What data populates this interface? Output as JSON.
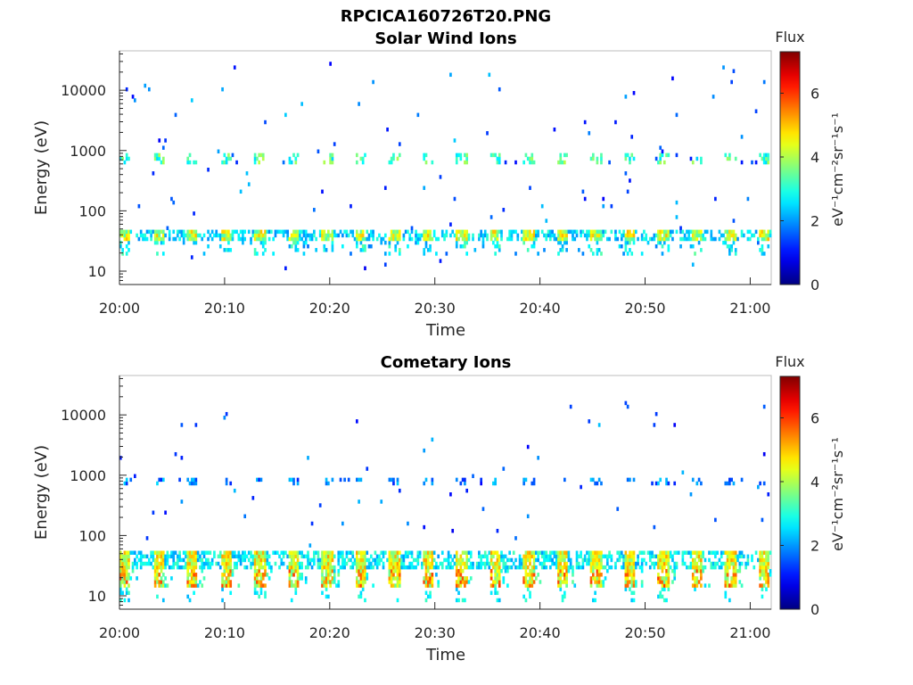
{
  "figure_title": "RPCICA160726T20.PNG",
  "chart_data": [
    {
      "type": "heatmap",
      "title": "Solar Wind Ions",
      "xlabel": "Time",
      "ylabel": "Energy (eV)",
      "y_scale": "log",
      "ylim": [
        6,
        45000
      ],
      "x_range": [
        "20:00",
        "21:02"
      ],
      "x_ticks": [
        "20:00",
        "20:10",
        "20:20",
        "20:30",
        "20:40",
        "20:50",
        "21:00"
      ],
      "y_ticks": [
        "10",
        "100",
        "1000",
        "10000"
      ],
      "colorbar": {
        "title": "Flux",
        "unit": "eV⁻¹cm⁻²sr⁻¹s⁻¹",
        "range": [
          0,
          7.3
        ],
        "ticks": [
          "0",
          "2",
          "4",
          "6"
        ],
        "colormap": "jet"
      },
      "pulse_period_min": 3.2,
      "bands": [
        {
          "energy_ev": 750,
          "flux": 3.2,
          "note": "periodic bursts near 1 keV"
        },
        {
          "energy_ev": 40,
          "flux": 4.2,
          "note": "main periodic band 30-50 eV"
        },
        {
          "energy_ev": 25,
          "flux": 2.4,
          "note": "sparse lower extensions"
        }
      ]
    },
    {
      "type": "heatmap",
      "title": "Cometary Ions",
      "xlabel": "Time",
      "ylabel": "Energy (eV)",
      "y_scale": "log",
      "ylim": [
        6,
        45000
      ],
      "x_range": [
        "20:00",
        "21:02"
      ],
      "x_ticks": [
        "20:00",
        "20:10",
        "20:20",
        "20:30",
        "20:40",
        "20:50",
        "21:00"
      ],
      "y_ticks": [
        "10",
        "100",
        "1000",
        "10000"
      ],
      "colorbar": {
        "title": "Flux",
        "unit": "eV⁻¹cm⁻²sr⁻¹s⁻¹",
        "range": [
          0,
          7.3
        ],
        "ticks": [
          "0",
          "2",
          "4",
          "6"
        ],
        "colormap": "jet"
      },
      "pulse_period_min": 3.2,
      "bands": [
        {
          "energy_ev": 750,
          "flux": 1.8,
          "note": "sparse bursts near 1 keV"
        },
        {
          "energy_ev": 40,
          "flux": 4.6,
          "note": "periodic band 35-50 eV"
        },
        {
          "energy_ev": 18,
          "flux": 5.2,
          "note": "intense bursts 12-25 eV"
        }
      ]
    }
  ]
}
